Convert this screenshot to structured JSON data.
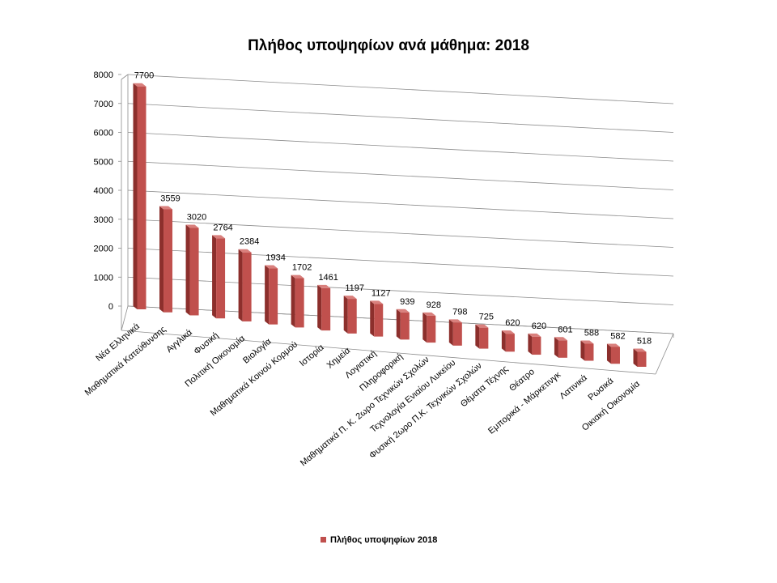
{
  "chart_data": {
    "type": "bar",
    "title": "Πλήθος υποψηφίων ανά μάθημα: 2018",
    "xlabel": "",
    "ylabel": "",
    "ylim": [
      0,
      8000
    ],
    "yticks": [
      "0",
      "1000",
      "2000",
      "3000",
      "4000",
      "5000",
      "6000",
      "7000",
      "8000"
    ],
    "grid": true,
    "legend_position": "bottom",
    "categories": [
      "Νέα Ελληνικά",
      "Μαθηματικά Κατεύθυνσης",
      "Αγγλικά",
      "Φυσική",
      "Πολιτική Οικονομία",
      "Βιολογία",
      "Μαθηματικά Κοινού Κορμού",
      "Ιστορία",
      "Χημεία",
      "Λογιστική",
      "Πληροφορική",
      "Μαθηματικά Π. Κ. 2ωρο Τεχνικών Σχολών",
      "Τεχνολογία Ενιαίου Λυκείου",
      "Φυσική 2ωρο Π.Κ. Τεχνικών Σχολών",
      "Θέματα Τέχνης",
      "Θέατρο",
      "Εμπορικά - Μάρκετινγκ",
      "Λατινικά",
      "Ρωσικά",
      "Οικιακή Οικονομία"
    ],
    "series": [
      {
        "name": "Πλήθος υποψηφίων 2018",
        "values": [
          7700,
          3559,
          3020,
          2764,
          2384,
          1934,
          1702,
          1461,
          1197,
          1127,
          939,
          928,
          798,
          725,
          620,
          620,
          601,
          588,
          582,
          518
        ]
      }
    ],
    "colors": {
      "bar_front": "#c0504d",
      "bar_side": "#8c2f2c",
      "bar_top": "#d9807d",
      "grid": "#8c8c8c"
    }
  }
}
